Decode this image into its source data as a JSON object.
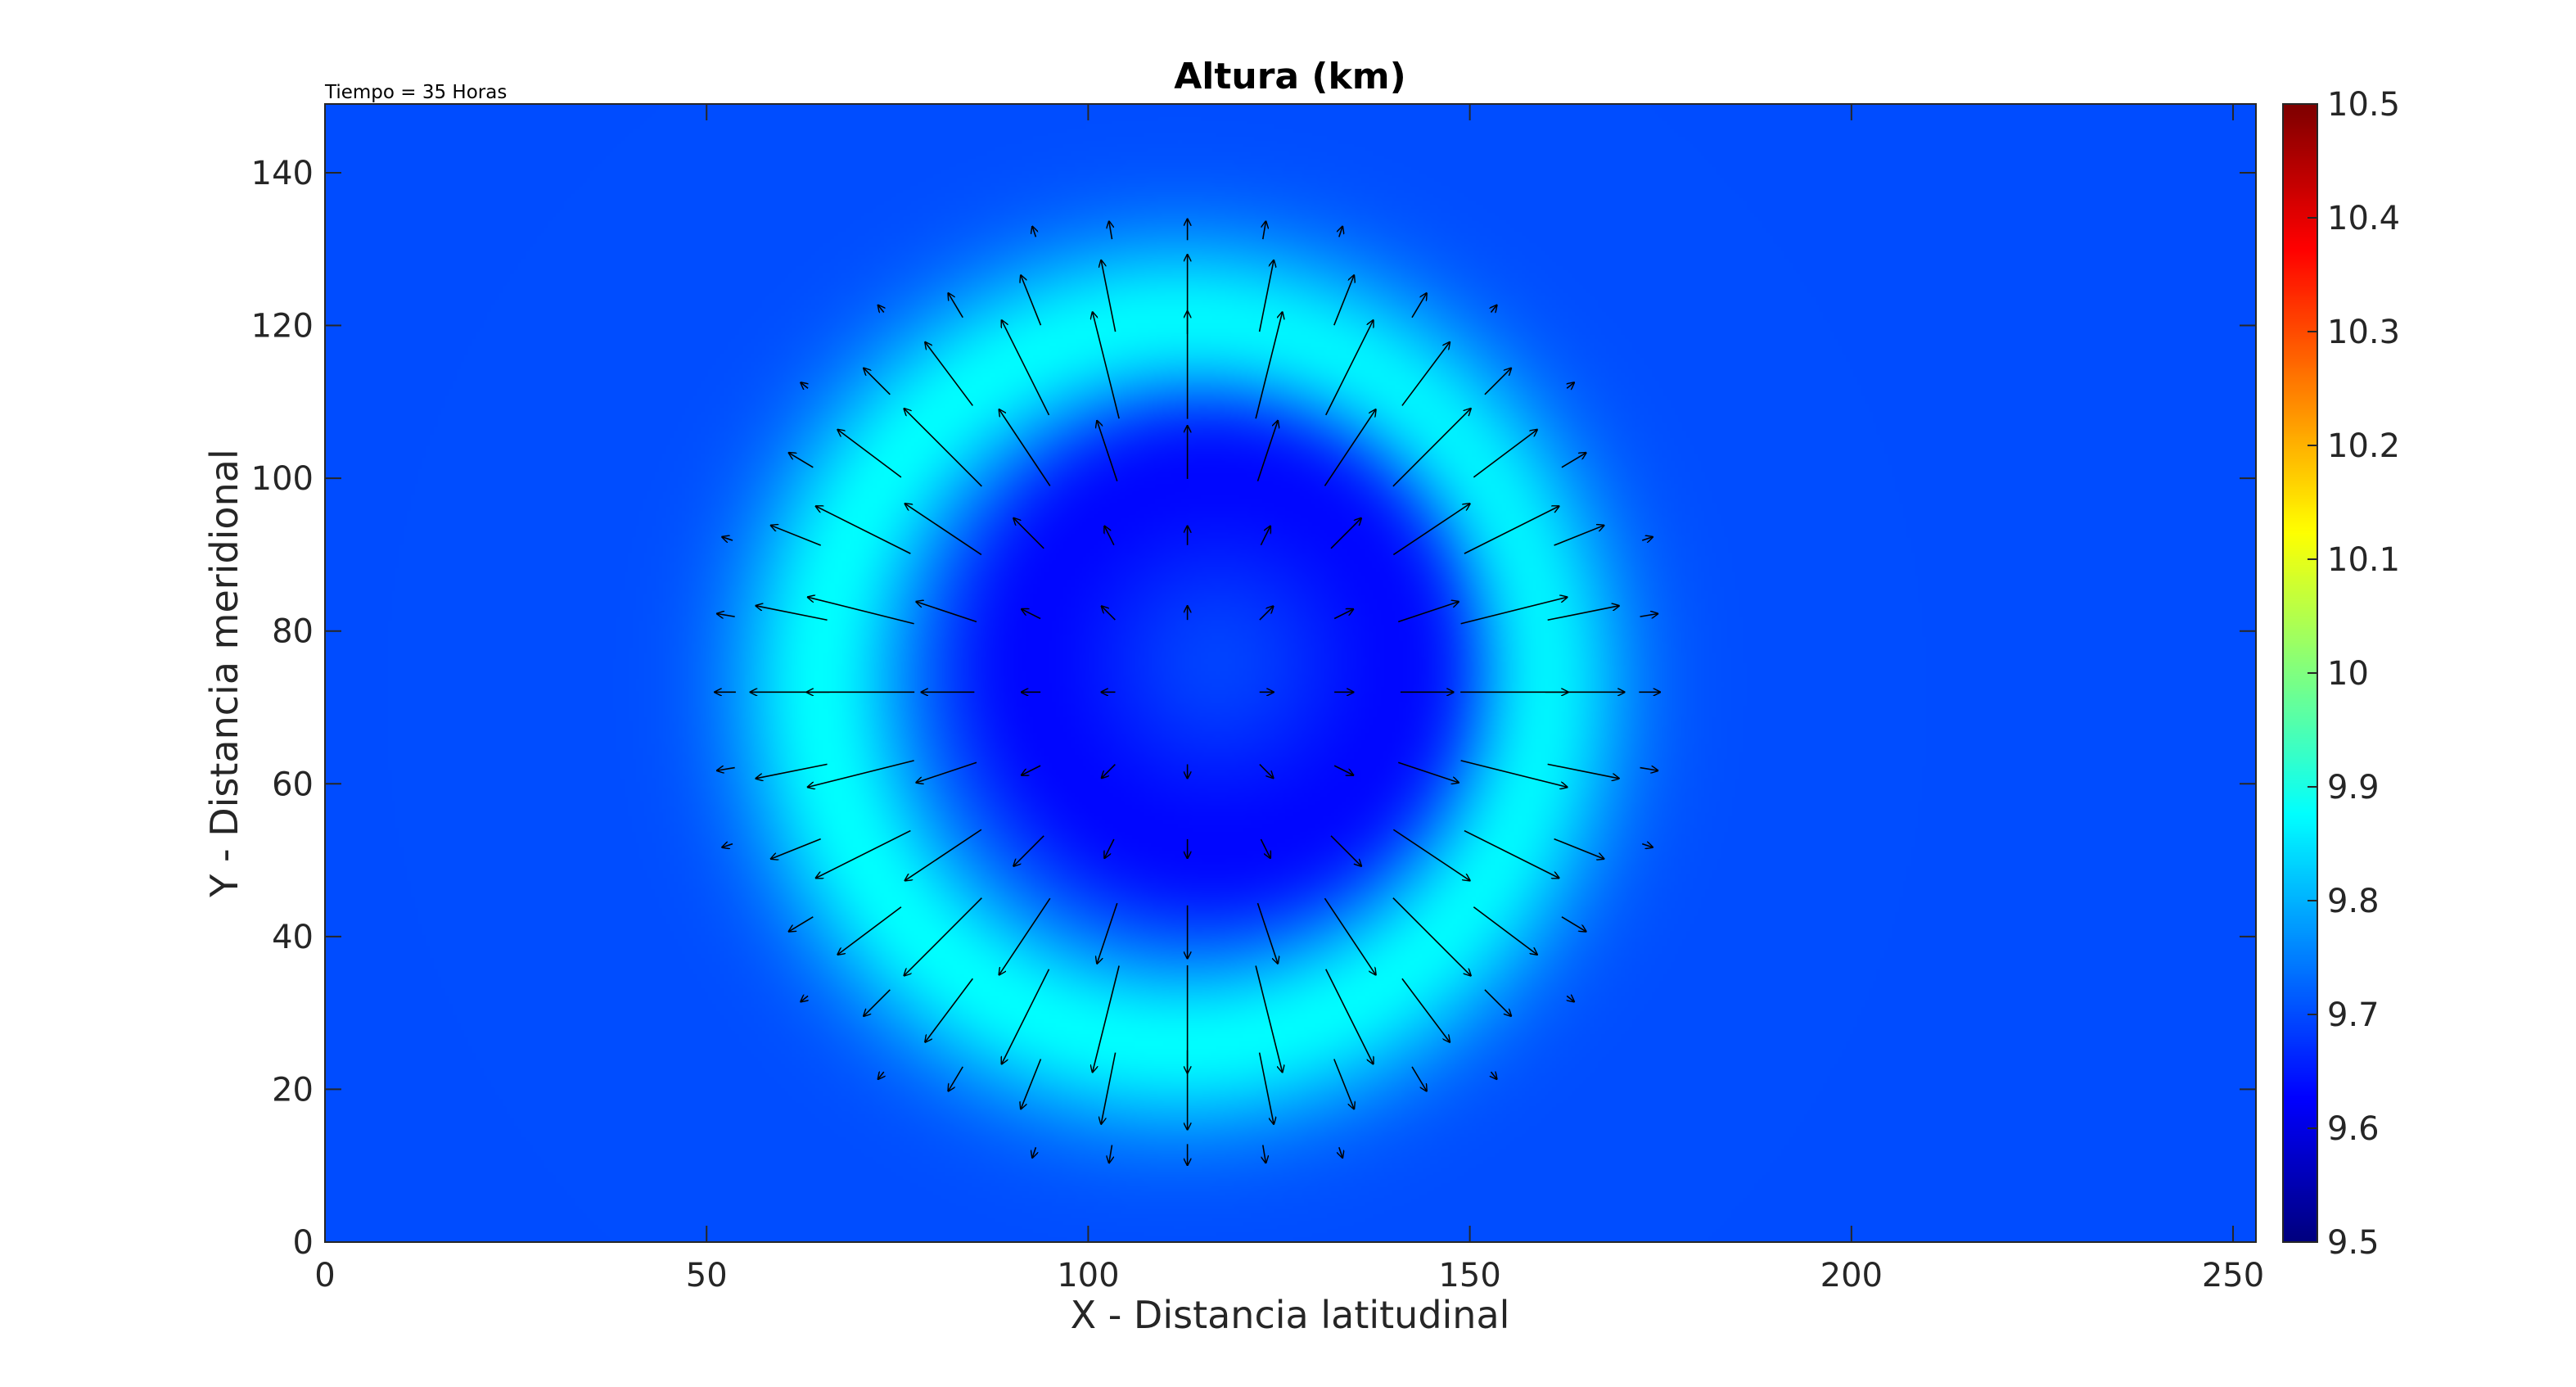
{
  "chart_data": {
    "type": "heatmap",
    "title": "Altura (km)",
    "annotation": "Tiempo = 35 Horas",
    "xlabel": "X - Distancia latitudinal",
    "ylabel": "Y - Distancia meridional",
    "xlim": [
      0,
      253
    ],
    "ylim": [
      0,
      149
    ],
    "x_ticks": [
      0,
      50,
      100,
      150,
      200,
      250
    ],
    "y_ticks": [
      0,
      20,
      40,
      60,
      80,
      100,
      120,
      140
    ],
    "colorbar": {
      "colormap": "jet",
      "range": [
        9.5,
        10.5
      ],
      "ticks": [
        "9.5",
        "9.6",
        "9.7",
        "9.8",
        "9.9",
        "10",
        "10.1",
        "10.2",
        "10.3",
        "10.4",
        "10.5"
      ]
    },
    "field": {
      "description_of_values": "height field in km",
      "background_value": 9.7,
      "ring": {
        "center": [
          112,
          73
        ],
        "radius": 47,
        "width": 12,
        "peak_value": 9.875
      },
      "depression": {
        "center": [
          117,
          76
        ],
        "radius": 32,
        "min_value": 9.61
      }
    },
    "quiver": {
      "pattern": "radially outward from vortex center",
      "center": [
        113,
        72
      ],
      "grid_spacing": 10
    },
    "grid": false
  },
  "colors": {
    "background": "#0050ff",
    "axes_text": "#262626"
  }
}
